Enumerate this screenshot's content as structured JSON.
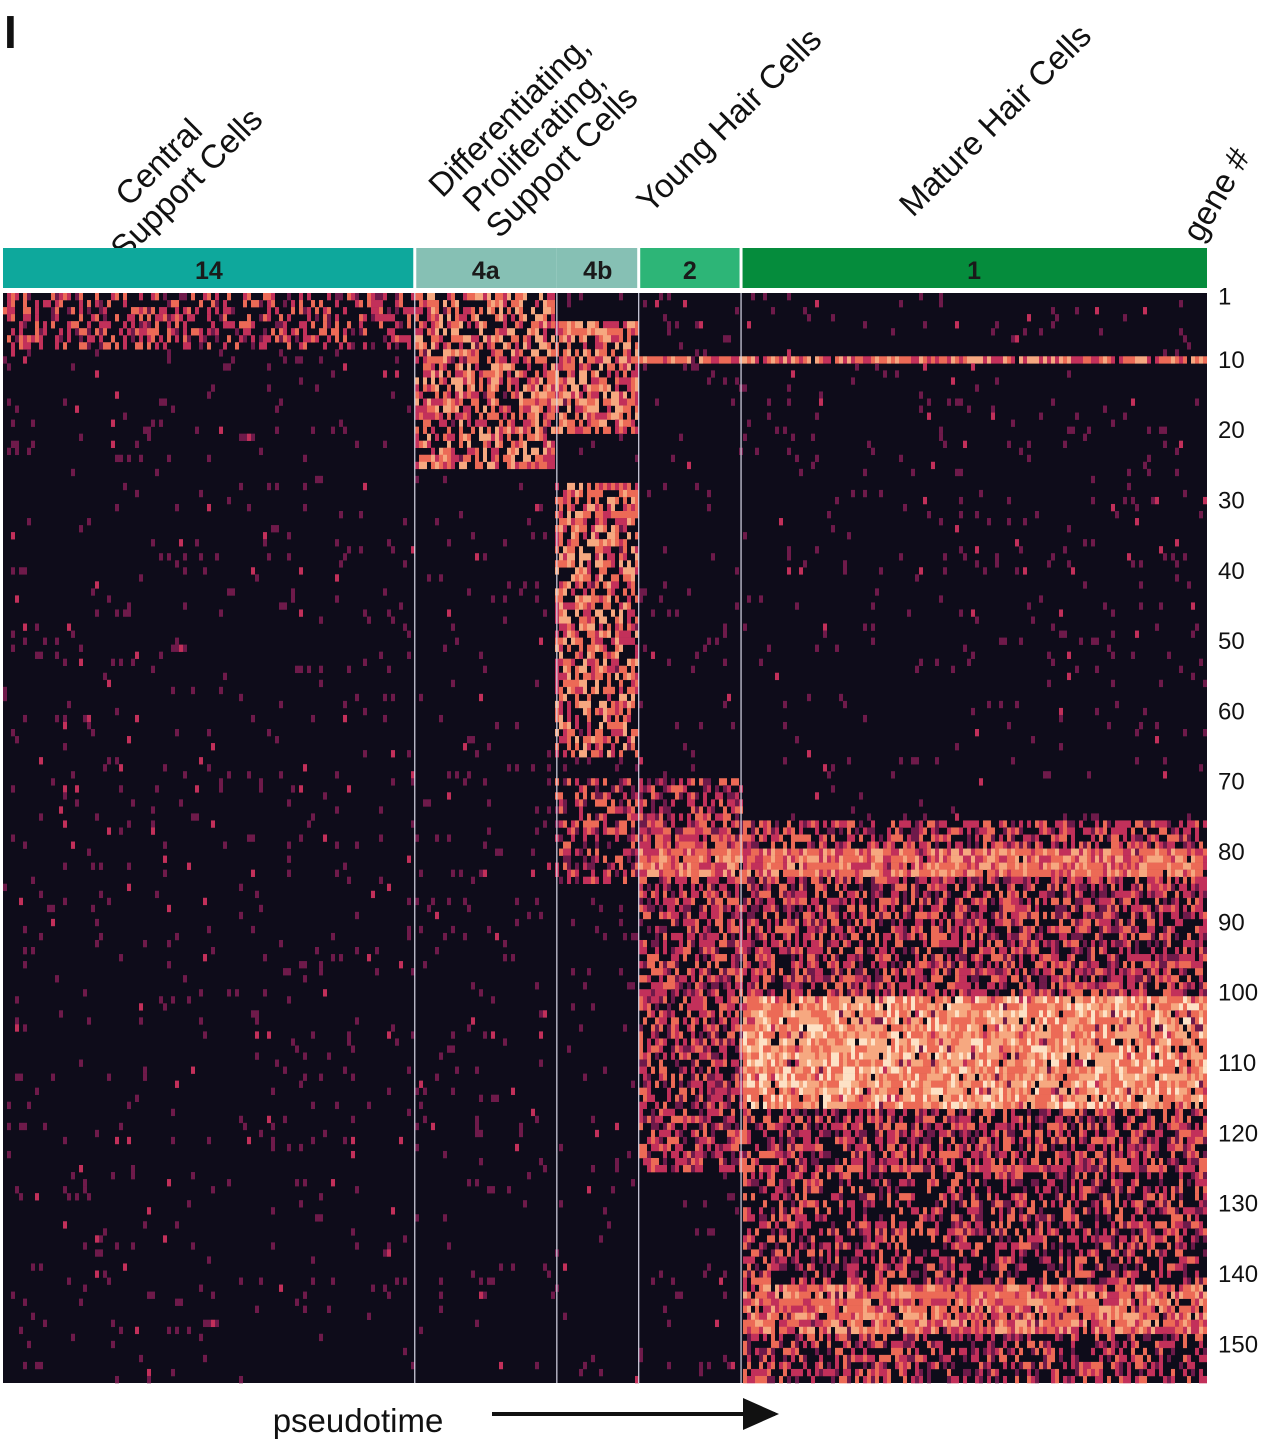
{
  "panel_label": "I",
  "chart_data": {
    "type": "heatmap",
    "title": "",
    "xlabel": "pseudotime",
    "ylabel": "gene #",
    "x_direction": "left-to-right (arrow)",
    "cell_groups": [
      {
        "name": "Central\nSupport Cells",
        "clusters": [
          "14"
        ]
      },
      {
        "name": "Differentiating,\nProliferating,\nSupport Cells",
        "clusters": [
          "4a",
          "4b"
        ]
      },
      {
        "name": "Young Hair Cells",
        "clusters": [
          "2"
        ]
      },
      {
        "name": "Mature Hair Cells",
        "clusters": [
          "1"
        ]
      }
    ],
    "clusters": [
      {
        "label": "14",
        "color": "#0ea89c",
        "cell_fraction": 0.342
      },
      {
        "label": "4a",
        "color": "#86c0b4",
        "cell_fraction": 0.118
      },
      {
        "label": "4b",
        "color": "#86c0b4",
        "cell_fraction": 0.068
      },
      {
        "label": "2",
        "color": "#2db577",
        "cell_fraction": 0.085
      },
      {
        "label": "1",
        "color": "#058c3c",
        "cell_fraction": 0.387
      }
    ],
    "gene_count": 155,
    "yticks": [
      1,
      10,
      20,
      30,
      40,
      50,
      60,
      70,
      80,
      90,
      100,
      110,
      120,
      130,
      140,
      150
    ],
    "colormap": [
      "#0e0c1a",
      "#6e1a4a",
      "#c2305a",
      "#ec6a56",
      "#f6a880",
      "#fde2c6"
    ],
    "expression_blocks": [
      {
        "genes": [
          1,
          8
        ],
        "clusters": [
          "14"
        ],
        "level": "medium",
        "density": 0.45
      },
      {
        "genes": [
          1,
          25
        ],
        "clusters": [
          "4a"
        ],
        "level": "high",
        "density": 0.6
      },
      {
        "genes": [
          5,
          20
        ],
        "clusters": [
          "4b"
        ],
        "level": "high",
        "density": 0.75
      },
      {
        "genes": [
          28,
          66
        ],
        "clusters": [
          "4b"
        ],
        "level": "high",
        "density": 0.6
      },
      {
        "genes": [
          10,
          10
        ],
        "clusters": [
          "2",
          "1"
        ],
        "level": "high",
        "density": 0.95
      },
      {
        "genes": [
          70,
          84
        ],
        "clusters": [
          "4b"
        ],
        "level": "medium",
        "density": 0.5
      },
      {
        "genes": [
          70,
          80
        ],
        "clusters": [
          "2"
        ],
        "level": "medium",
        "density": 0.6
      },
      {
        "genes": [
          80,
          83
        ],
        "clusters": [
          "2",
          "1"
        ],
        "level": "high",
        "density": 0.95
      },
      {
        "genes": [
          76,
          125
        ],
        "clusters": [
          "2",
          "1"
        ],
        "level": "medium",
        "density": 0.6
      },
      {
        "genes": [
          101,
          116
        ],
        "clusters": [
          "1"
        ],
        "level": "very high",
        "density": 0.85
      },
      {
        "genes": [
          125,
          155
        ],
        "clusters": [
          "1"
        ],
        "level": "medium",
        "density": 0.45
      },
      {
        "genes": [
          142,
          148
        ],
        "clusters": [
          "1"
        ],
        "level": "high",
        "density": 0.8
      }
    ]
  }
}
